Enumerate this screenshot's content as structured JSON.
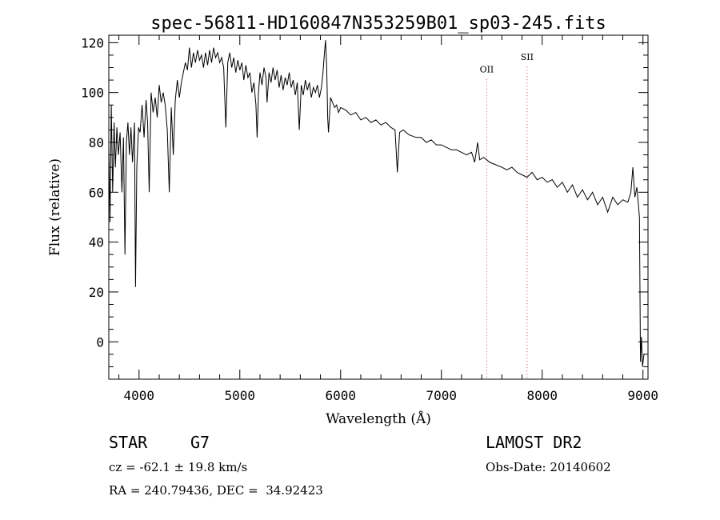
{
  "chart_data": {
    "type": "line",
    "title": "spec-56811-HD160847N353259B01_sp03-245.fits",
    "xlabel": "Wavelength (Å)",
    "ylabel": "Flux (relative)",
    "xlim": [
      3700,
      9050
    ],
    "ylim": [
      -15,
      123
    ],
    "xticks": [
      "4000",
      "5000",
      "6000",
      "7000",
      "8000",
      "9000"
    ],
    "yticks": [
      "0",
      "20",
      "40",
      "60",
      "80",
      "100",
      "120"
    ],
    "grid": false,
    "series": [
      {
        "points": [
          [
            3700,
            80
          ],
          [
            3712,
            48
          ],
          [
            3725,
            95
          ],
          [
            3738,
            60
          ],
          [
            3752,
            88
          ],
          [
            3765,
            70
          ],
          [
            3780,
            86
          ],
          [
            3795,
            75
          ],
          [
            3812,
            84
          ],
          [
            3830,
            60
          ],
          [
            3845,
            82
          ],
          [
            3860,
            35
          ],
          [
            3875,
            80
          ],
          [
            3890,
            88
          ],
          [
            3905,
            75
          ],
          [
            3920,
            86
          ],
          [
            3935,
            72
          ],
          [
            3955,
            88
          ],
          [
            3965,
            22
          ],
          [
            3978,
            70
          ],
          [
            3995,
            86
          ],
          [
            4010,
            84
          ],
          [
            4030,
            95
          ],
          [
            4050,
            82
          ],
          [
            4070,
            97
          ],
          [
            4085,
            88
          ],
          [
            4101,
            60
          ],
          [
            4120,
            100
          ],
          [
            4140,
            92
          ],
          [
            4160,
            98
          ],
          [
            4180,
            90
          ],
          [
            4200,
            103
          ],
          [
            4220,
            96
          ],
          [
            4240,
            100
          ],
          [
            4260,
            95
          ],
          [
            4280,
            85
          ],
          [
            4300,
            60
          ],
          [
            4320,
            94
          ],
          [
            4340,
            75
          ],
          [
            4360,
            97
          ],
          [
            4380,
            105
          ],
          [
            4400,
            98
          ],
          [
            4420,
            104
          ],
          [
            4440,
            108
          ],
          [
            4460,
            112
          ],
          [
            4480,
            109
          ],
          [
            4500,
            118
          ],
          [
            4520,
            110
          ],
          [
            4540,
            116
          ],
          [
            4560,
            112
          ],
          [
            4580,
            117
          ],
          [
            4600,
            113
          ],
          [
            4620,
            115
          ],
          [
            4640,
            110
          ],
          [
            4660,
            116
          ],
          [
            4680,
            111
          ],
          [
            4700,
            117
          ],
          [
            4720,
            112
          ],
          [
            4740,
            118
          ],
          [
            4760,
            114
          ],
          [
            4780,
            116
          ],
          [
            4800,
            112
          ],
          [
            4820,
            114
          ],
          [
            4840,
            110
          ],
          [
            4861,
            86
          ],
          [
            4880,
            112
          ],
          [
            4900,
            116
          ],
          [
            4920,
            110
          ],
          [
            4940,
            114
          ],
          [
            4960,
            108
          ],
          [
            4980,
            113
          ],
          [
            5000,
            109
          ],
          [
            5020,
            112
          ],
          [
            5040,
            105
          ],
          [
            5060,
            111
          ],
          [
            5080,
            106
          ],
          [
            5100,
            108
          ],
          [
            5120,
            100
          ],
          [
            5140,
            104
          ],
          [
            5160,
            95
          ],
          [
            5172,
            82
          ],
          [
            5185,
            100
          ],
          [
            5200,
            108
          ],
          [
            5220,
            103
          ],
          [
            5240,
            110
          ],
          [
            5260,
            106
          ],
          [
            5270,
            96
          ],
          [
            5290,
            108
          ],
          [
            5310,
            104
          ],
          [
            5330,
            110
          ],
          [
            5350,
            105
          ],
          [
            5370,
            109
          ],
          [
            5390,
            102
          ],
          [
            5410,
            107
          ],
          [
            5430,
            101
          ],
          [
            5450,
            106
          ],
          [
            5470,
            103
          ],
          [
            5490,
            108
          ],
          [
            5510,
            102
          ],
          [
            5530,
            105
          ],
          [
            5550,
            99
          ],
          [
            5570,
            104
          ],
          [
            5590,
            85
          ],
          [
            5610,
            103
          ],
          [
            5630,
            99
          ],
          [
            5650,
            105
          ],
          [
            5670,
            101
          ],
          [
            5690,
            104
          ],
          [
            5710,
            98
          ],
          [
            5730,
            102
          ],
          [
            5750,
            100
          ],
          [
            5770,
            103
          ],
          [
            5790,
            98
          ],
          [
            5810,
            102
          ],
          [
            5825,
            108
          ],
          [
            5840,
            116
          ],
          [
            5850,
            121
          ],
          [
            5862,
            110
          ],
          [
            5872,
            90
          ],
          [
            5880,
            84
          ],
          [
            5900,
            98
          ],
          [
            5920,
            96
          ],
          [
            5940,
            94
          ],
          [
            5960,
            95
          ],
          [
            5980,
            92
          ],
          [
            6000,
            94
          ],
          [
            6050,
            93
          ],
          [
            6100,
            91
          ],
          [
            6150,
            92
          ],
          [
            6200,
            89
          ],
          [
            6250,
            90
          ],
          [
            6300,
            88
          ],
          [
            6350,
            89
          ],
          [
            6400,
            87
          ],
          [
            6450,
            88
          ],
          [
            6500,
            86
          ],
          [
            6540,
            85
          ],
          [
            6563,
            68
          ],
          [
            6585,
            84
          ],
          [
            6620,
            85
          ],
          [
            6680,
            83
          ],
          [
            6750,
            82
          ],
          [
            6800,
            82
          ],
          [
            6850,
            80
          ],
          [
            6900,
            81
          ],
          [
            6950,
            79
          ],
          [
            7000,
            79
          ],
          [
            7050,
            78
          ],
          [
            7100,
            77
          ],
          [
            7150,
            77
          ],
          [
            7200,
            76
          ],
          [
            7250,
            75
          ],
          [
            7300,
            76
          ],
          [
            7330,
            72
          ],
          [
            7360,
            80
          ],
          [
            7380,
            73
          ],
          [
            7420,
            74
          ],
          [
            7480,
            72
          ],
          [
            7540,
            71
          ],
          [
            7600,
            70
          ],
          [
            7650,
            69
          ],
          [
            7700,
            70
          ],
          [
            7750,
            68
          ],
          [
            7800,
            67
          ],
          [
            7850,
            66
          ],
          [
            7900,
            68
          ],
          [
            7950,
            65
          ],
          [
            8000,
            66
          ],
          [
            8050,
            64
          ],
          [
            8100,
            65
          ],
          [
            8150,
            62
          ],
          [
            8200,
            64
          ],
          [
            8250,
            60
          ],
          [
            8300,
            63
          ],
          [
            8350,
            58
          ],
          [
            8400,
            61
          ],
          [
            8450,
            57
          ],
          [
            8500,
            60
          ],
          [
            8550,
            55
          ],
          [
            8600,
            58
          ],
          [
            8650,
            52
          ],
          [
            8700,
            58
          ],
          [
            8750,
            55
          ],
          [
            8800,
            57
          ],
          [
            8850,
            56
          ],
          [
            8880,
            60
          ],
          [
            8900,
            70
          ],
          [
            8920,
            58
          ],
          [
            8940,
            62
          ],
          [
            8955,
            55
          ],
          [
            8965,
            50
          ],
          [
            8975,
            -8
          ],
          [
            8985,
            2
          ],
          [
            8995,
            -10
          ],
          [
            9010,
            -5
          ]
        ]
      }
    ],
    "annotations": [
      {
        "label": "OII",
        "x": 7450,
        "y": 108
      },
      {
        "label": "SII",
        "x": 7850,
        "y": 113
      }
    ]
  },
  "info": {
    "class": "STAR",
    "subclass": "G7",
    "survey": "LAMOST DR2",
    "cz": "cz = -62.1 ± 19.8 km/s",
    "obs_date": "Obs-Date: 20140602",
    "coords": "RA = 240.79436, DEC =  34.92423"
  }
}
